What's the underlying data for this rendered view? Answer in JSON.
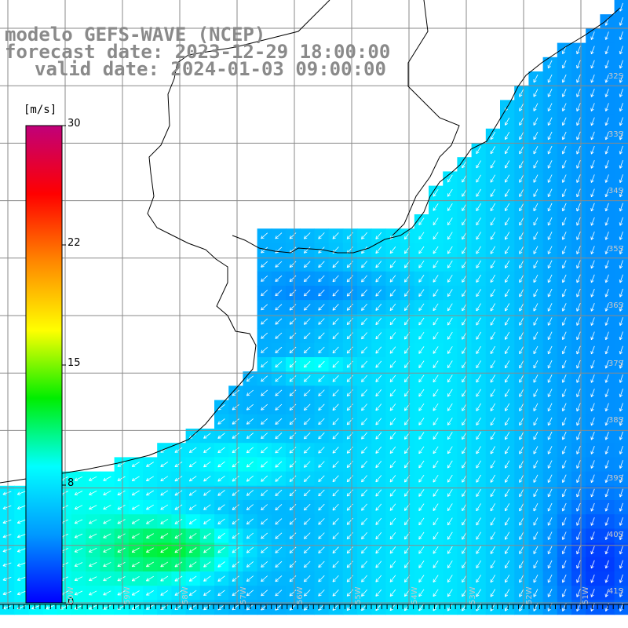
{
  "titles": {
    "model": "modelo GEFS-WAVE (NCEP)",
    "forecast": "forecast date: 2023-12-29 18:00:00",
    "valid": "valid date: 2024-01-03 09:00:00"
  },
  "colorbar": {
    "unit": "[m/s]",
    "min": 0,
    "max": 30,
    "ticks": [
      "30",
      "22",
      "15",
      "8",
      "0"
    ],
    "colors": [
      "#0000ff",
      "#0099ff",
      "#00ffff",
      "#00ee00",
      "#ffff00",
      "#ff8800",
      "#ff0000",
      "#c0007a"
    ]
  },
  "lat_labels": [
    "32S",
    "33S",
    "34S",
    "35S",
    "36S",
    "37S",
    "38S",
    "39S",
    "40S",
    "41S"
  ],
  "lon_labels": [
    "60W",
    "59W",
    "58W",
    "57W",
    "56W",
    "55W",
    "54W",
    "53W",
    "52W",
    "51W"
  ],
  "legend_colors": {
    "land": "#ffffff",
    "grid": "#808080",
    "coast": "#000000",
    "arrow": "#ffffff"
  }
}
